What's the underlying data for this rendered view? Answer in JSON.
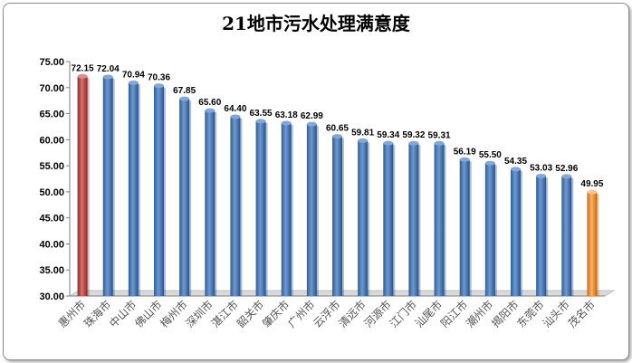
{
  "chart_data": {
    "type": "bar",
    "title": "21地市污水处理满意度",
    "categories": [
      "惠州市",
      "珠海市",
      "中山市",
      "佛山市",
      "梅州市",
      "深圳市",
      "湛江市",
      "韶关市",
      "肇庆市",
      "广州市",
      "云浮市",
      "清远市",
      "河源市",
      "江门市",
      "汕尾市",
      "阳江市",
      "潮州市",
      "揭阳市",
      "东莞市",
      "汕头市",
      "茂名市"
    ],
    "values": [
      72.15,
      72.04,
      70.94,
      70.36,
      67.85,
      65.6,
      64.4,
      63.55,
      63.18,
      62.99,
      60.65,
      59.81,
      59.34,
      59.32,
      59.31,
      56.19,
      55.5,
      54.35,
      53.03,
      52.96,
      49.95
    ],
    "data_labels": [
      "72.15",
      "72.04",
      "70.94",
      "70.36",
      "67.85",
      "65.60",
      "64.40",
      "63.55",
      "63.18",
      "62.99",
      "60.65",
      "59.81",
      "59.34",
      "59.32",
      "59.31",
      "56.19",
      "55.50",
      "54.35",
      "53.03",
      "52.96",
      "49.95"
    ],
    "y_tick_labels": [
      "30.00",
      "35.00",
      "40.00",
      "45.00",
      "50.00",
      "55.00",
      "60.00",
      "65.00",
      "70.00",
      "75.00"
    ],
    "ylim": [
      30,
      75
    ],
    "xlabel": "",
    "ylabel": "",
    "grid": false,
    "legend": "none",
    "colors": {
      "default": "#4f81bd",
      "highest": "#c0504d",
      "lowest": "#f79646"
    }
  }
}
